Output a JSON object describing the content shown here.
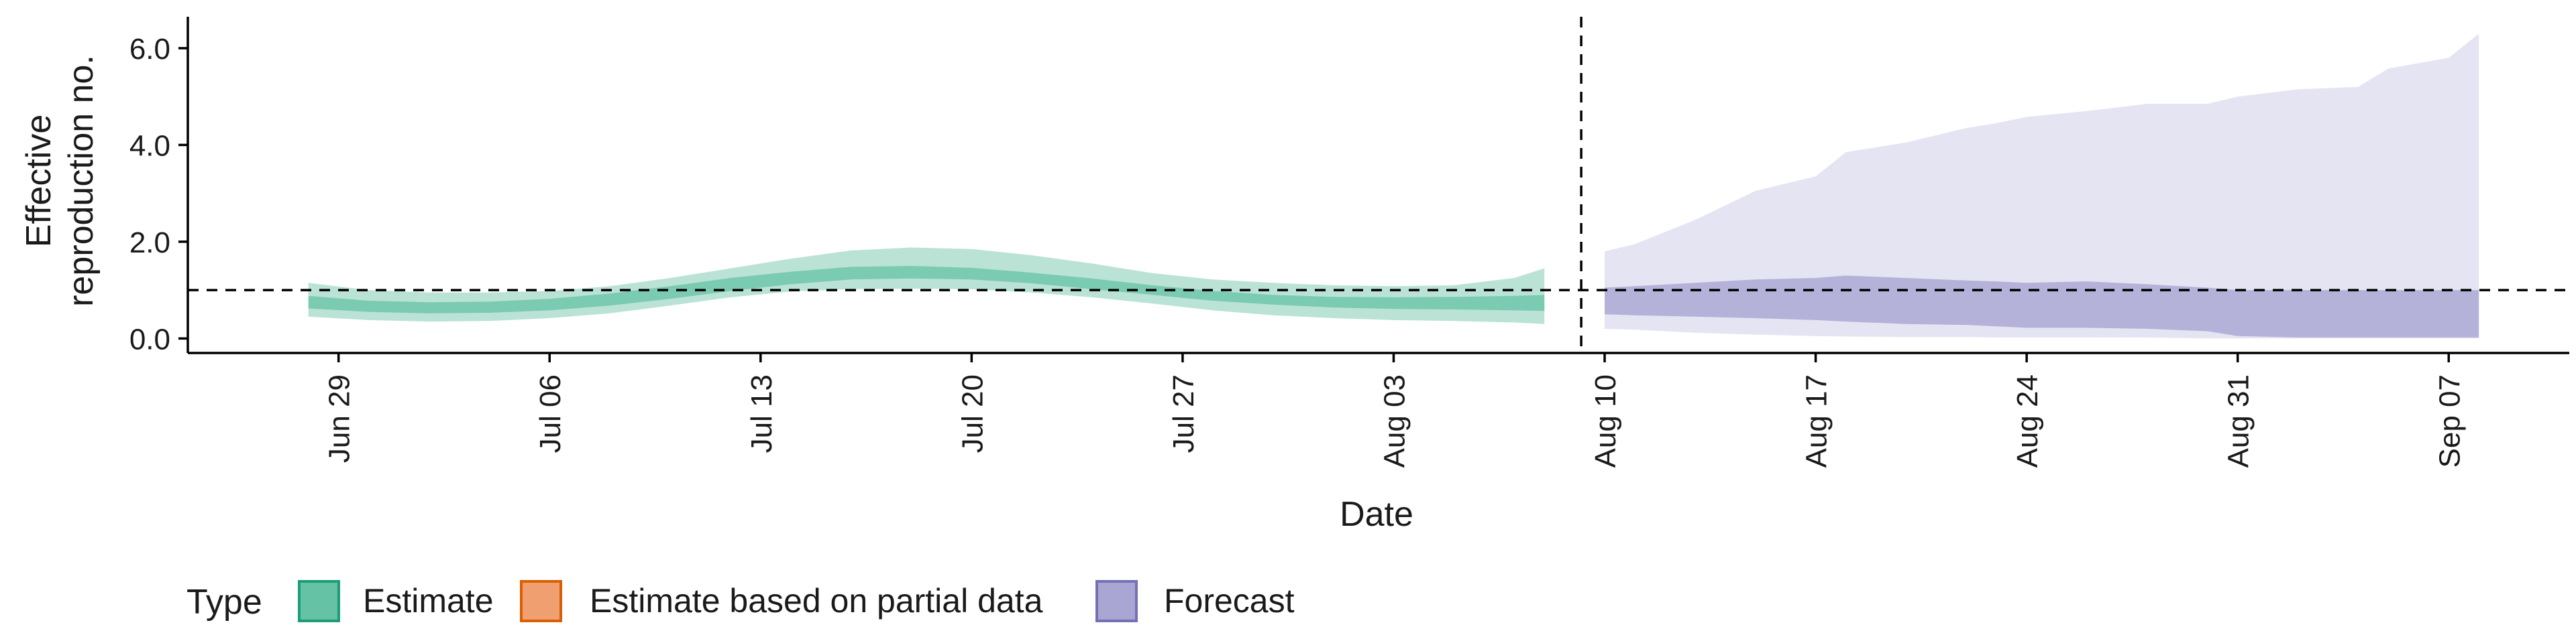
{
  "chart_data": {
    "type": "area",
    "xlabel": "Date",
    "ylabel_lines": [
      "Effective",
      "reproduction no."
    ],
    "ylim": [
      -0.3,
      6.65
    ],
    "yticks": [
      0,
      2,
      4,
      6
    ],
    "ytick_labels": [
      "0.0",
      "2.0",
      "4.0",
      "6.0"
    ],
    "x_domain": [
      "2020-06-24",
      "2020-09-11"
    ],
    "xticks": [
      "2020-06-29",
      "2020-07-06",
      "2020-07-13",
      "2020-07-20",
      "2020-07-27",
      "2020-08-03",
      "2020-08-10",
      "2020-08-17",
      "2020-08-24",
      "2020-08-31",
      "2020-09-07"
    ],
    "xtick_labels": [
      "Jun 29",
      "Jul 06",
      "Jul 13",
      "Jul 20",
      "Jul 27",
      "Aug 03",
      "Aug 10",
      "Aug 17",
      "Aug 24",
      "Aug 31",
      "Sep 07"
    ],
    "reference_line_y": 1.0,
    "forecast_start_date": "2020-08-09",
    "legend": {
      "title": "Type",
      "position": "bottom",
      "items": [
        {
          "label": "Estimate",
          "fill": "#66c2a5",
          "stroke": "#1b9e77"
        },
        {
          "label": "Estimate based on partial data",
          "fill": "#f0a070",
          "stroke": "#d95f02"
        },
        {
          "label": "Forecast",
          "fill": "#a9a6d3",
          "stroke": "#7570b3"
        }
      ]
    },
    "series": [
      {
        "name": "Estimate",
        "color": "#1b9e77",
        "dates": [
          "2020-06-28",
          "2020-06-30",
          "2020-07-02",
          "2020-07-04",
          "2020-07-06",
          "2020-07-08",
          "2020-07-10",
          "2020-07-12",
          "2020-07-14",
          "2020-07-16",
          "2020-07-18",
          "2020-07-20",
          "2020-07-22",
          "2020-07-24",
          "2020-07-26",
          "2020-07-28",
          "2020-07-30",
          "2020-08-01",
          "2020-08-03",
          "2020-08-05",
          "2020-08-07",
          "2020-08-08"
        ],
        "outer_upper": [
          1.15,
          1.0,
          0.95,
          0.95,
          0.98,
          1.08,
          1.25,
          1.45,
          1.65,
          1.82,
          1.88,
          1.85,
          1.72,
          1.55,
          1.35,
          1.22,
          1.15,
          1.1,
          1.08,
          1.1,
          1.25,
          1.45
        ],
        "outer_lower": [
          0.45,
          0.38,
          0.35,
          0.36,
          0.42,
          0.52,
          0.68,
          0.85,
          0.97,
          1.02,
          1.03,
          1.02,
          0.95,
          0.85,
          0.72,
          0.58,
          0.48,
          0.42,
          0.38,
          0.36,
          0.33,
          0.3
        ],
        "inner_upper": [
          0.88,
          0.78,
          0.75,
          0.76,
          0.82,
          0.93,
          1.08,
          1.25,
          1.38,
          1.48,
          1.5,
          1.46,
          1.36,
          1.24,
          1.1,
          0.98,
          0.9,
          0.86,
          0.85,
          0.86,
          0.88,
          0.9
        ],
        "inner_lower": [
          0.62,
          0.55,
          0.52,
          0.53,
          0.58,
          0.68,
          0.82,
          0.98,
          1.12,
          1.22,
          1.24,
          1.22,
          1.14,
          1.02,
          0.9,
          0.78,
          0.7,
          0.64,
          0.61,
          0.6,
          0.58,
          0.57
        ]
      },
      {
        "name": "Forecast",
        "color": "#7570b3",
        "dates": [
          "2020-08-10",
          "2020-08-11",
          "2020-08-13",
          "2020-08-15",
          "2020-08-17",
          "2020-08-18",
          "2020-08-20",
          "2020-08-22",
          "2020-08-23",
          "2020-08-24",
          "2020-08-26",
          "2020-08-28",
          "2020-08-30",
          "2020-08-31",
          "2020-09-02",
          "2020-09-04",
          "2020-09-05",
          "2020-09-07",
          "2020-09-08"
        ],
        "outer_upper": [
          1.8,
          1.95,
          2.45,
          3.05,
          3.35,
          3.85,
          4.05,
          4.35,
          4.45,
          4.58,
          4.7,
          4.85,
          4.85,
          5.0,
          5.15,
          5.2,
          5.58,
          5.8,
          6.3
        ],
        "outer_lower": [
          0.2,
          0.18,
          0.12,
          0.08,
          0.05,
          0.04,
          0.03,
          0.03,
          0.02,
          0.02,
          0.02,
          0.02,
          0.0,
          0.0,
          0.0,
          0.0,
          0.0,
          0.0,
          0.0
        ],
        "inner_upper": [
          1.05,
          1.08,
          1.15,
          1.22,
          1.25,
          1.3,
          1.25,
          1.2,
          1.18,
          1.15,
          1.18,
          1.12,
          1.05,
          1.0,
          1.0,
          1.0,
          1.0,
          1.0,
          1.0
        ],
        "inner_lower": [
          0.5,
          0.48,
          0.45,
          0.42,
          0.38,
          0.35,
          0.3,
          0.28,
          0.25,
          0.22,
          0.22,
          0.2,
          0.15,
          0.05,
          0.02,
          0.02,
          0.02,
          0.02,
          0.02
        ]
      }
    ]
  }
}
